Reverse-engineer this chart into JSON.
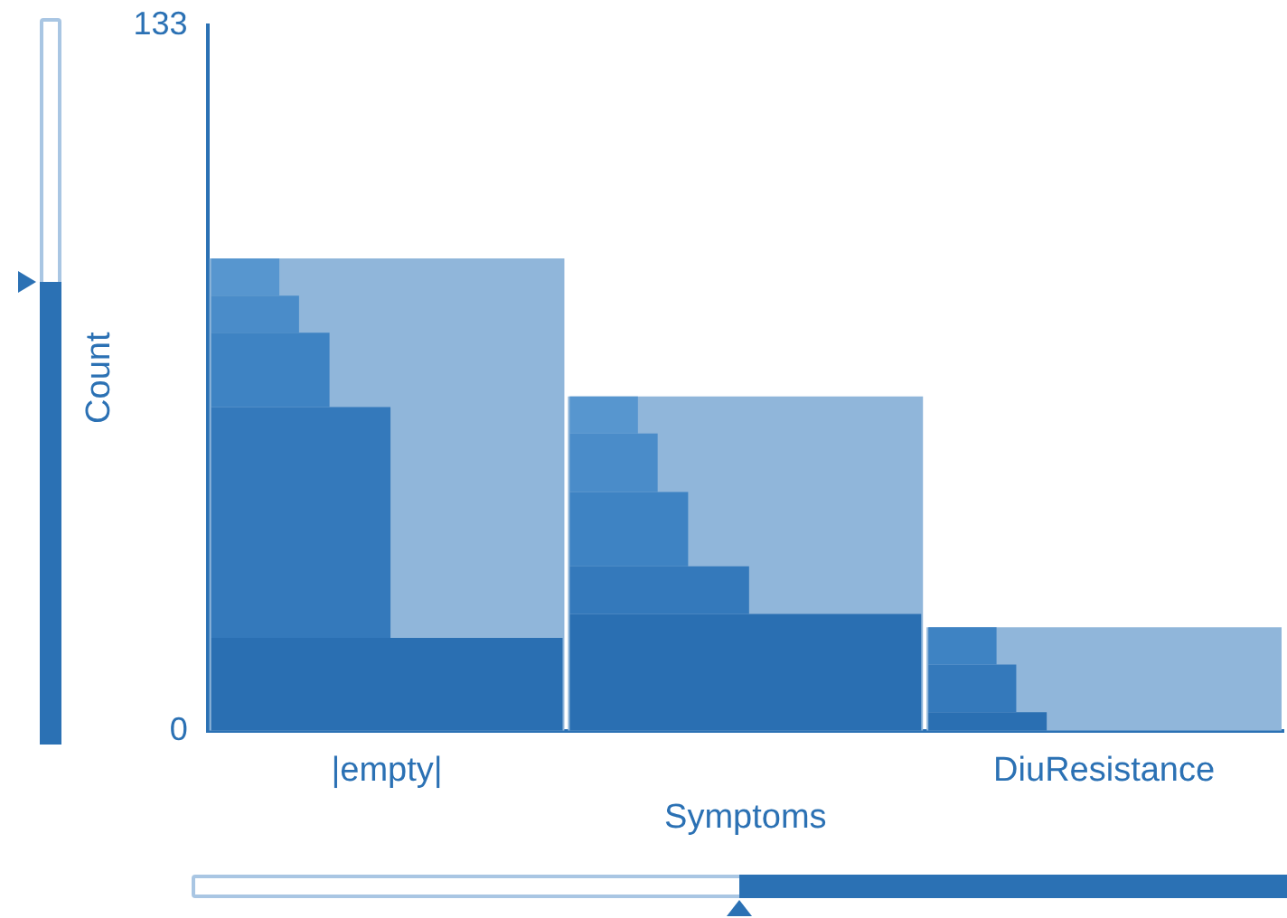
{
  "chart_data": {
    "type": "bar",
    "xlabel": "Symptoms",
    "ylabel": "Count",
    "categories": [
      "|empty|",
      null,
      "DiuResistance"
    ],
    "ylim": [
      0,
      133
    ],
    "yticks": [
      0,
      133
    ],
    "grid": false,
    "legend": false,
    "series": [
      {
        "color": "#90b6da",
        "values": [
          89,
          63,
          19.5
        ]
      },
      {
        "color": "#5796cf",
        "values": [
          7,
          7,
          null
        ],
        "base": [
          82,
          56,
          null
        ]
      },
      {
        "color": "#4a8cc9",
        "values": [
          7,
          11,
          null
        ],
        "base": [
          75,
          45,
          null
        ]
      },
      {
        "color": "#3e83c3",
        "values": [
          14,
          14,
          7
        ],
        "base": [
          61,
          31,
          12.5
        ]
      },
      {
        "color": "#3479bb",
        "values": [
          43.5,
          9,
          9
        ],
        "base": [
          17.5,
          22,
          3.5
        ]
      },
      {
        "color": "#2a6fb2",
        "values": [
          17.5,
          22,
          3.5
        ],
        "base": [
          0,
          0,
          0
        ]
      }
    ]
  }
}
